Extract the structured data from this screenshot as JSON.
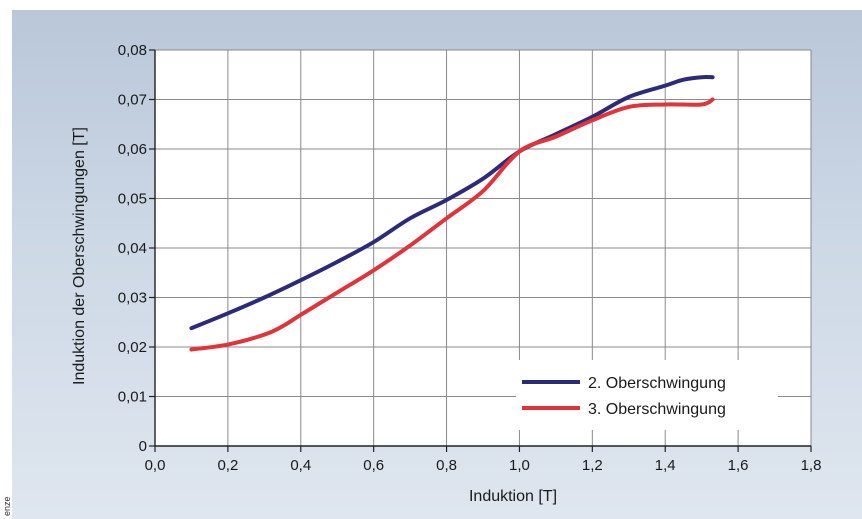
{
  "credit": "enze",
  "chart_data": {
    "type": "line",
    "xlabel": "Induktion [T]",
    "ylabel": "Induktion der Oberschwingungen [T]",
    "xlim": [
      0,
      1.8
    ],
    "ylim": [
      0,
      0.08
    ],
    "x_ticks": [
      "0,0",
      "0,2",
      "0,4",
      "0,6",
      "0,8",
      "1,0",
      "1,2",
      "1,4",
      "1,6",
      "1,8"
    ],
    "y_ticks": [
      "0",
      "0,01",
      "0,02",
      "0,03",
      "0,04",
      "0,05",
      "0,06",
      "0,07",
      "0,08"
    ],
    "grid": true,
    "legend_position": "bottom-right",
    "series": [
      {
        "name": "2. Oberschwingung",
        "color": "#2e2a7a",
        "points": [
          [
            0.1,
            0.0238
          ],
          [
            0.2,
            0.0268
          ],
          [
            0.3,
            0.03
          ],
          [
            0.4,
            0.0335
          ],
          [
            0.5,
            0.0372
          ],
          [
            0.6,
            0.0412
          ],
          [
            0.7,
            0.046
          ],
          [
            0.8,
            0.0497
          ],
          [
            0.9,
            0.054
          ],
          [
            1.0,
            0.0595
          ],
          [
            1.1,
            0.063
          ],
          [
            1.2,
            0.0665
          ],
          [
            1.3,
            0.0705
          ],
          [
            1.4,
            0.0728
          ],
          [
            1.45,
            0.074
          ],
          [
            1.5,
            0.0745
          ],
          [
            1.53,
            0.0745
          ]
        ]
      },
      {
        "name": "3. Oberschwingung",
        "color": "#e0343a",
        "points": [
          [
            0.1,
            0.0195
          ],
          [
            0.2,
            0.0205
          ],
          [
            0.3,
            0.0225
          ],
          [
            0.35,
            0.0242
          ],
          [
            0.4,
            0.0265
          ],
          [
            0.5,
            0.031
          ],
          [
            0.6,
            0.0355
          ],
          [
            0.7,
            0.0405
          ],
          [
            0.8,
            0.046
          ],
          [
            0.9,
            0.0515
          ],
          [
            1.0,
            0.0595
          ],
          [
            1.1,
            0.0625
          ],
          [
            1.2,
            0.0658
          ],
          [
            1.3,
            0.0685
          ],
          [
            1.4,
            0.069
          ],
          [
            1.5,
            0.069
          ],
          [
            1.53,
            0.07
          ]
        ]
      }
    ]
  }
}
